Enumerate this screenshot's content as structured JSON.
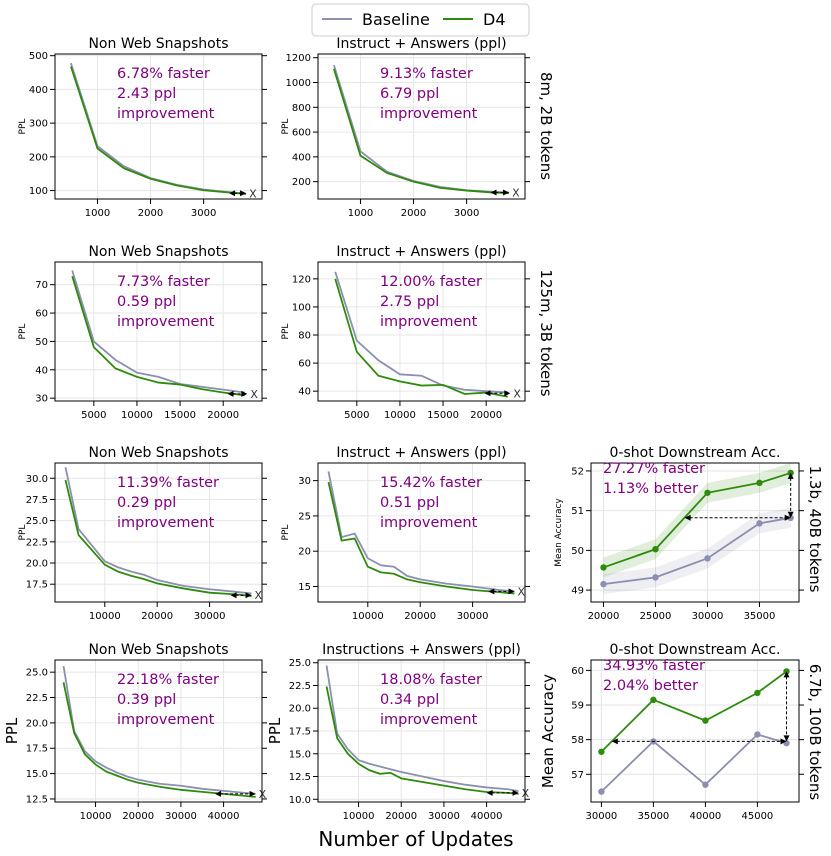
{
  "legend": {
    "items": [
      {
        "name": "Baseline",
        "color": "#8c8fb0"
      },
      {
        "name": "D4",
        "color": "#2e8b0c"
      }
    ]
  },
  "xlabel": "Number of Updates",
  "row_labels": [
    "8m, 2B tokens",
    "125m, 3B tokens",
    "1.3b, 40B tokens",
    "6.7b, 100B tokens"
  ],
  "colors": {
    "baseline": "#8c8fb0",
    "d4": "#2e8b0c",
    "annotation": "#800080"
  },
  "chart_data": [
    {
      "type": "line",
      "title": "Non Web Snapshots",
      "ylabel": "PPL",
      "xlim": [
        200,
        4100
      ],
      "ylim": [
        75,
        505
      ],
      "xticks": [
        1000,
        2000,
        3000
      ],
      "xtick_labels": [
        "1000",
        "2000",
        "3000"
      ],
      "yticks": [
        100,
        200,
        300,
        400,
        500
      ],
      "ytick_labels": [
        "100",
        "200",
        "300",
        "400",
        "500"
      ],
      "annotation": [
        "6.78% faster",
        "2.43 ppl",
        "improvement"
      ],
      "series": [
        {
          "name": "Baseline",
          "x": [
            500,
            1000,
            1500,
            2000,
            2500,
            3000,
            3500,
            3800
          ],
          "y": [
            478,
            232,
            172,
            137,
            117,
            103,
            95,
            91
          ]
        },
        {
          "name": "D4",
          "x": [
            500,
            1000,
            1500,
            2000,
            2500,
            3000,
            3500,
            3800
          ],
          "y": [
            468,
            225,
            166,
            135,
            115,
            101,
            94,
            90
          ]
        }
      ],
      "arrow": {
        "x1": 3480,
        "x2": 3800,
        "y": 92
      }
    },
    {
      "type": "line",
      "title": "Instruct + Answers (ppl)",
      "ylabel": "PPL",
      "xlim": [
        200,
        4100
      ],
      "ylim": [
        60,
        1230
      ],
      "xticks": [
        1000,
        2000,
        3000
      ],
      "xtick_labels": [
        "1000",
        "2000",
        "3000"
      ],
      "yticks": [
        200,
        400,
        600,
        800,
        1000,
        1200
      ],
      "ytick_labels": [
        "200",
        "400",
        "600",
        "800",
        "1000",
        "1200"
      ],
      "annotation": [
        "9.13% faster",
        "6.79 ppl",
        "improvement"
      ],
      "series": [
        {
          "name": "Baseline",
          "x": [
            500,
            1000,
            1500,
            2000,
            2500,
            3000,
            3500,
            3800
          ],
          "y": [
            1140,
            445,
            280,
            205,
            158,
            130,
            118,
            112
          ]
        },
        {
          "name": "D4",
          "x": [
            500,
            1000,
            1500,
            2000,
            2500,
            3000,
            3500,
            3800
          ],
          "y": [
            1110,
            410,
            270,
            200,
            150,
            128,
            112,
            108
          ]
        }
      ],
      "arrow": {
        "x1": 3450,
        "x2": 3800,
        "y": 112
      }
    },
    {
      "type": "line",
      "title": "Non Web Snapshots",
      "ylabel": "PPL",
      "xlim": [
        500,
        24500
      ],
      "ylim": [
        29,
        78
      ],
      "xticks": [
        5000,
        10000,
        15000,
        20000
      ],
      "xtick_labels": [
        "5000",
        "10000",
        "15000",
        "20000"
      ],
      "yticks": [
        30,
        40,
        50,
        60,
        70
      ],
      "ytick_labels": [
        "30",
        "40",
        "50",
        "60",
        "70"
      ],
      "annotation": [
        "7.73% faster",
        "0.59 ppl",
        "improvement"
      ],
      "series": [
        {
          "name": "Baseline",
          "x": [
            2500,
            5000,
            7500,
            10000,
            12500,
            15000,
            17500,
            20000,
            22500
          ],
          "y": [
            75,
            50,
            43.5,
            39,
            37.5,
            35,
            34,
            33,
            32
          ]
        },
        {
          "name": "D4",
          "x": [
            2500,
            5000,
            7500,
            10000,
            12500,
            15000,
            17500,
            20000,
            22500
          ],
          "y": [
            73,
            48,
            40.5,
            37.5,
            35.5,
            34.8,
            33.2,
            32,
            31
          ]
        }
      ],
      "arrow": {
        "x1": 20500,
        "x2": 22800,
        "y": 31.5
      }
    },
    {
      "type": "line",
      "title": "Instruct + Answers (ppl)",
      "ylabel": "PPL",
      "xlim": [
        500,
        24500
      ],
      "ylim": [
        33,
        132
      ],
      "xticks": [
        5000,
        10000,
        15000,
        20000
      ],
      "xtick_labels": [
        "5000",
        "10000",
        "15000",
        "20000"
      ],
      "yticks": [
        40,
        60,
        80,
        100,
        120
      ],
      "ytick_labels": [
        "40",
        "60",
        "80",
        "100",
        "120"
      ],
      "annotation": [
        "12.00% faster",
        "2.75 ppl",
        "improvement"
      ],
      "series": [
        {
          "name": "Baseline",
          "x": [
            2500,
            5000,
            7500,
            10000,
            12500,
            15000,
            17500,
            20000,
            22500
          ],
          "y": [
            125,
            76,
            62,
            52,
            51,
            44,
            41,
            40,
            39
          ]
        },
        {
          "name": "D4",
          "x": [
            2500,
            5000,
            7500,
            10000,
            12500,
            15000,
            17500,
            20000,
            22500
          ],
          "y": [
            120,
            68,
            51,
            47,
            44,
            44.5,
            38,
            39,
            36
          ]
        }
      ],
      "arrow": {
        "x1": 19800,
        "x2": 22800,
        "y": 38.5
      }
    },
    {
      "type": "line",
      "title": "Non Web Snapshots",
      "ylabel": "PPL",
      "xlim": [
        500,
        40000
      ],
      "ylim": [
        15.4,
        31.8
      ],
      "xticks": [
        10000,
        20000,
        30000
      ],
      "xtick_labels": [
        "10000",
        "20000",
        "30000"
      ],
      "yticks": [
        17.5,
        20,
        22.5,
        25,
        27.5,
        30
      ],
      "ytick_labels": [
        "17.5",
        "20.0",
        "22.5",
        "25.0",
        "27.5",
        "30.0"
      ],
      "annotation": [
        "11.39% faster",
        "0.29 ppl",
        "improvement"
      ],
      "series": [
        {
          "name": "Baseline",
          "x": [
            2500,
            5000,
            10000,
            12500,
            15000,
            17500,
            20000,
            25000,
            30000,
            35000,
            38000
          ],
          "y": [
            31.3,
            24,
            20.2,
            19.5,
            19.0,
            18.6,
            18.0,
            17.3,
            16.9,
            16.6,
            16.4
          ]
        },
        {
          "name": "D4",
          "x": [
            2500,
            5000,
            10000,
            12500,
            15000,
            17500,
            20000,
            25000,
            30000,
            35000,
            38000
          ],
          "y": [
            29.8,
            23.3,
            19.8,
            19.0,
            18.5,
            18.1,
            17.6,
            17.0,
            16.5,
            16.3,
            16.1
          ]
        }
      ],
      "arrow": {
        "x1": 34000,
        "x2": 38000,
        "y": 16.2
      }
    },
    {
      "type": "line",
      "title": "Instruct + Answers (ppl)",
      "ylabel": "PPL",
      "xlim": [
        500,
        40000
      ],
      "ylim": [
        12.8,
        32.5
      ],
      "xticks": [
        10000,
        20000,
        30000
      ],
      "xtick_labels": [
        "10000",
        "20000",
        "30000"
      ],
      "yticks": [
        15,
        20,
        25,
        30
      ],
      "ytick_labels": [
        "15",
        "20",
        "25",
        "30"
      ],
      "annotation": [
        "15.42% faster",
        "0.51 ppl",
        "improvement"
      ],
      "series": [
        {
          "name": "Baseline",
          "x": [
            2500,
            5000,
            7500,
            10000,
            12500,
            15000,
            17500,
            20000,
            25000,
            30000,
            35000,
            38000
          ],
          "y": [
            31.3,
            22,
            22.5,
            19,
            18,
            17.8,
            16.5,
            16,
            15.4,
            15,
            14.5,
            14.3
          ]
        },
        {
          "name": "D4",
          "x": [
            2500,
            5000,
            7500,
            10000,
            12500,
            15000,
            17500,
            20000,
            25000,
            30000,
            35000,
            38000
          ],
          "y": [
            29.8,
            21.5,
            21.8,
            17.8,
            17,
            16.8,
            16,
            15.6,
            15,
            14.5,
            14.2,
            14
          ]
        }
      ],
      "arrow": {
        "x1": 33000,
        "x2": 38000,
        "y": 14.3
      }
    },
    {
      "type": "line",
      "title": "0-shot Downstream Acc.",
      "ylabel": "Mean Accuracy",
      "xlim": [
        18800,
        38800
      ],
      "ylim": [
        48.7,
        52.2
      ],
      "xticks": [
        20000,
        25000,
        30000,
        35000
      ],
      "xtick_labels": [
        "20000",
        "25000",
        "30000",
        "35000"
      ],
      "yticks": [
        49,
        50,
        51,
        52
      ],
      "ytick_labels": [
        "49",
        "50",
        "51",
        "52"
      ],
      "annotation": [
        "27.27% faster",
        "1.13% better"
      ],
      "series": [
        {
          "name": "Baseline",
          "x": [
            20000,
            25000,
            30000,
            35000,
            38000
          ],
          "y": [
            49.15,
            49.32,
            49.8,
            50.68,
            50.82
          ]
        },
        {
          "name": "D4",
          "x": [
            20000,
            25000,
            30000,
            35000,
            38000
          ],
          "y": [
            49.57,
            50.03,
            51.45,
            51.7,
            51.95
          ]
        }
      ],
      "arrow": {
        "x1": 27800,
        "x2": 38000,
        "y": 50.82
      },
      "vertical_arrow": {
        "x": 38000,
        "y1": 51.95,
        "y2": 50.82
      }
    },
    {
      "type": "line",
      "title": "0-shot Downstream Acc.",
      "ylabel": "Mean Accuracy",
      "xlim": [
        29000,
        49000
      ],
      "ylim": [
        56.2,
        60.3
      ],
      "xticks": [
        30000,
        35000,
        40000,
        45000
      ],
      "xtick_labels": [
        "30000",
        "35000",
        "40000",
        "45000"
      ],
      "yticks": [
        57,
        58,
        59,
        60
      ],
      "ytick_labels": [
        "57",
        "58",
        "59",
        "60"
      ],
      "annotation": [
        "34.93% faster",
        "2.04% better"
      ],
      "series": [
        {
          "name": "Baseline",
          "x": [
            30000,
            35000,
            40000,
            45000,
            47800
          ],
          "y": [
            56.5,
            57.95,
            56.7,
            58.15,
            57.9
          ]
        },
        {
          "name": "D4",
          "x": [
            30000,
            35000,
            40000,
            45000,
            47800
          ],
          "y": [
            57.65,
            59.15,
            58.55,
            59.35,
            59.97
          ]
        }
      ],
      "arrow": {
        "x1": 31000,
        "x2": 47800,
        "y": 57.95
      },
      "vertical_arrow": {
        "x": 47800,
        "y1": 59.97,
        "y2": 57.95
      }
    },
    {
      "type": "line",
      "title": "Non Web Snapshots",
      "ylabel": "PPL",
      "xlim": [
        500,
        49000
      ],
      "ylim": [
        12.2,
        26.2
      ],
      "xticks": [
        10000,
        20000,
        30000,
        40000
      ],
      "xtick_labels": [
        "10000",
        "20000",
        "30000",
        "40000"
      ],
      "yticks": [
        12.5,
        15,
        17.5,
        20,
        22.5,
        25
      ],
      "ytick_labels": [
        "12.5",
        "15.0",
        "17.5",
        "20.0",
        "22.5",
        "25.0"
      ],
      "annotation": [
        "22.18% faster",
        "0.39 ppl",
        "improvement"
      ],
      "series": [
        {
          "name": "Baseline",
          "x": [
            2500,
            5000,
            7500,
            10000,
            12500,
            15000,
            17500,
            20000,
            22500,
            25000,
            30000,
            35000,
            40000,
            45000,
            47500
          ],
          "y": [
            25.6,
            19.2,
            17.2,
            16.2,
            15.6,
            15.1,
            14.7,
            14.4,
            14.2,
            14.0,
            13.8,
            13.5,
            13.3,
            13.1,
            13.0
          ]
        },
        {
          "name": "D4",
          "x": [
            2500,
            5000,
            7500,
            10000,
            12500,
            15000,
            17500,
            20000,
            22500,
            25000,
            30000,
            35000,
            40000,
            45000,
            47500
          ],
          "y": [
            24.0,
            19.0,
            16.9,
            15.9,
            15.2,
            14.8,
            14.4,
            14.1,
            13.9,
            13.7,
            13.4,
            13.2,
            13.0,
            12.8,
            12.7
          ]
        }
      ],
      "arrow": {
        "x1": 38000,
        "x2": 47500,
        "y": 13.0
      }
    },
    {
      "type": "line",
      "title": "Instructions + Answers (ppl)",
      "ylabel": "PPL",
      "xlim": [
        500,
        49000
      ],
      "ylim": [
        9.7,
        25.3
      ],
      "xticks": [
        10000,
        20000,
        30000,
        40000
      ],
      "xtick_labels": [
        "10000",
        "20000",
        "30000",
        "40000"
      ],
      "yticks": [
        10,
        12.5,
        15,
        17.5,
        20,
        22.5,
        25
      ],
      "ytick_labels": [
        "10.0",
        "12.5",
        "15.0",
        "17.5",
        "20.0",
        "22.5",
        "25.0"
      ],
      "annotation": [
        "18.08% faster",
        "0.34 ppl",
        "improvement"
      ],
      "series": [
        {
          "name": "Baseline",
          "x": [
            2500,
            5000,
            7500,
            10000,
            12500,
            15000,
            17500,
            20000,
            25000,
            30000,
            35000,
            40000,
            45000,
            47500
          ],
          "y": [
            24.7,
            17.2,
            15.5,
            14.3,
            13.9,
            13.6,
            13.3,
            13.0,
            12.5,
            12.0,
            11.6,
            11.3,
            11.1,
            10.9
          ]
        },
        {
          "name": "D4",
          "x": [
            2500,
            5000,
            7500,
            10000,
            12500,
            15000,
            17500,
            20000,
            25000,
            30000,
            35000,
            40000,
            45000,
            47500
          ],
          "y": [
            22.4,
            16.7,
            15.0,
            13.9,
            13.2,
            12.8,
            12.9,
            12.3,
            11.9,
            11.5,
            11.1,
            10.8,
            10.7,
            10.6
          ]
        }
      ],
      "arrow": {
        "x1": 40000,
        "x2": 47500,
        "y": 10.7
      }
    }
  ]
}
